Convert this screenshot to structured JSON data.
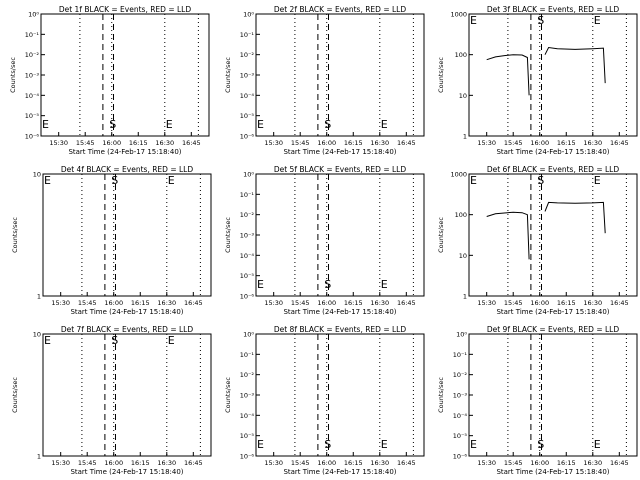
{
  "figure": {
    "xlabel": "Start Time (24-Feb-17 15:18:40)",
    "ylabel": "Counts/sec",
    "x_ticks": [
      "15:30",
      "15:45",
      "16:00",
      "16:15",
      "16:30",
      "16:45"
    ],
    "marker_labels": {
      "E": "E",
      "S": "S"
    }
  },
  "chart_data": [
    {
      "type": "line",
      "title": "Det 1f BLACK = Events, RED = LLD",
      "ylim_log": [
        1.0,
        1e-06
      ],
      "yscale": "log",
      "y_ticks": [
        "10⁰",
        "10⁻¹",
        "10⁻²",
        "10⁻³",
        "10⁻⁴",
        "10⁻⁵",
        "10⁻⁶"
      ],
      "series": []
    },
    {
      "type": "line",
      "title": "Det 2f BLACK = Events, RED = LLD",
      "yscale": "log",
      "y_ticks": [
        "10⁰",
        "10⁻¹",
        "10⁻²",
        "10⁻³",
        "10⁻⁴",
        "10⁻⁵",
        "10⁻⁶"
      ],
      "series": []
    },
    {
      "type": "line",
      "title": "Det 3f BLACK = Events, RED = LLD",
      "yscale": "log",
      "ylim": [
        1,
        1000
      ],
      "y_ticks": [
        "1000",
        "100",
        "10",
        "1"
      ],
      "series": [
        {
          "x": [
            "15:30",
            "15:35",
            "15:40",
            "15:45",
            "15:50",
            "15:53",
            "15:54"
          ],
          "values": [
            75,
            88,
            95,
            100,
            98,
            85,
            10
          ]
        },
        {
          "x": [
            "16:03",
            "16:05",
            "16:10",
            "16:20",
            "16:30",
            "16:36",
            "16:37"
          ],
          "values": [
            100,
            150,
            140,
            135,
            140,
            145,
            20
          ]
        }
      ]
    },
    {
      "type": "line",
      "title": "Det 4f BLACK = Events, RED = LLD",
      "yscale": "log",
      "ylim": [
        1,
        10
      ],
      "y_ticks": [
        "10",
        "1"
      ],
      "series": []
    },
    {
      "type": "line",
      "title": "Det 5f BLACK = Events, RED = LLD",
      "yscale": "log",
      "y_ticks": [
        "10⁰",
        "10⁻¹",
        "10⁻²",
        "10⁻³",
        "10⁻⁴",
        "10⁻⁵",
        "10⁻⁶"
      ],
      "series": []
    },
    {
      "type": "line",
      "title": "Det 6f BLACK = Events, RED = LLD",
      "yscale": "log",
      "ylim": [
        1,
        1000
      ],
      "y_ticks": [
        "1000",
        "100",
        "10",
        "1"
      ],
      "series": [
        {
          "x": [
            "15:30",
            "15:35",
            "15:40",
            "15:45",
            "15:50",
            "15:53",
            "15:54"
          ],
          "values": [
            90,
            105,
            110,
            115,
            112,
            100,
            8
          ]
        },
        {
          "x": [
            "16:03",
            "16:05",
            "16:10",
            "16:20",
            "16:30",
            "16:36",
            "16:37"
          ],
          "values": [
            120,
            200,
            195,
            190,
            195,
            200,
            35
          ]
        }
      ]
    },
    {
      "type": "line",
      "title": "Det 7f BLACK = Events, RED = LLD",
      "yscale": "log",
      "ylim": [
        1,
        10
      ],
      "y_ticks": [
        "10",
        "1"
      ],
      "series": []
    },
    {
      "type": "line",
      "title": "Det 8f BLACK = Events, RED = LLD",
      "yscale": "log",
      "y_ticks": [
        "10⁰",
        "10⁻¹",
        "10⁻²",
        "10⁻³",
        "10⁻⁴",
        "10⁻⁵",
        "10⁻⁶"
      ],
      "series": []
    },
    {
      "type": "line",
      "title": "Det 9f BLACK = Events, RED = LLD",
      "yscale": "log",
      "y_ticks": [
        "10⁰",
        "10⁻¹",
        "10⁻²",
        "10⁻³",
        "10⁻⁴",
        "10⁻⁵",
        "10⁻⁶"
      ],
      "series": []
    }
  ],
  "time_axis": {
    "start": "15:20",
    "end": "16:55",
    "dotted_times": [
      "15:42",
      "16:00",
      "16:30",
      "16:49"
    ],
    "dashed_times": [
      "15:55",
      "16:01"
    ],
    "e_label_times": [
      "15:20",
      "16:30"
    ],
    "s_label_times": [
      "15:58"
    ]
  }
}
